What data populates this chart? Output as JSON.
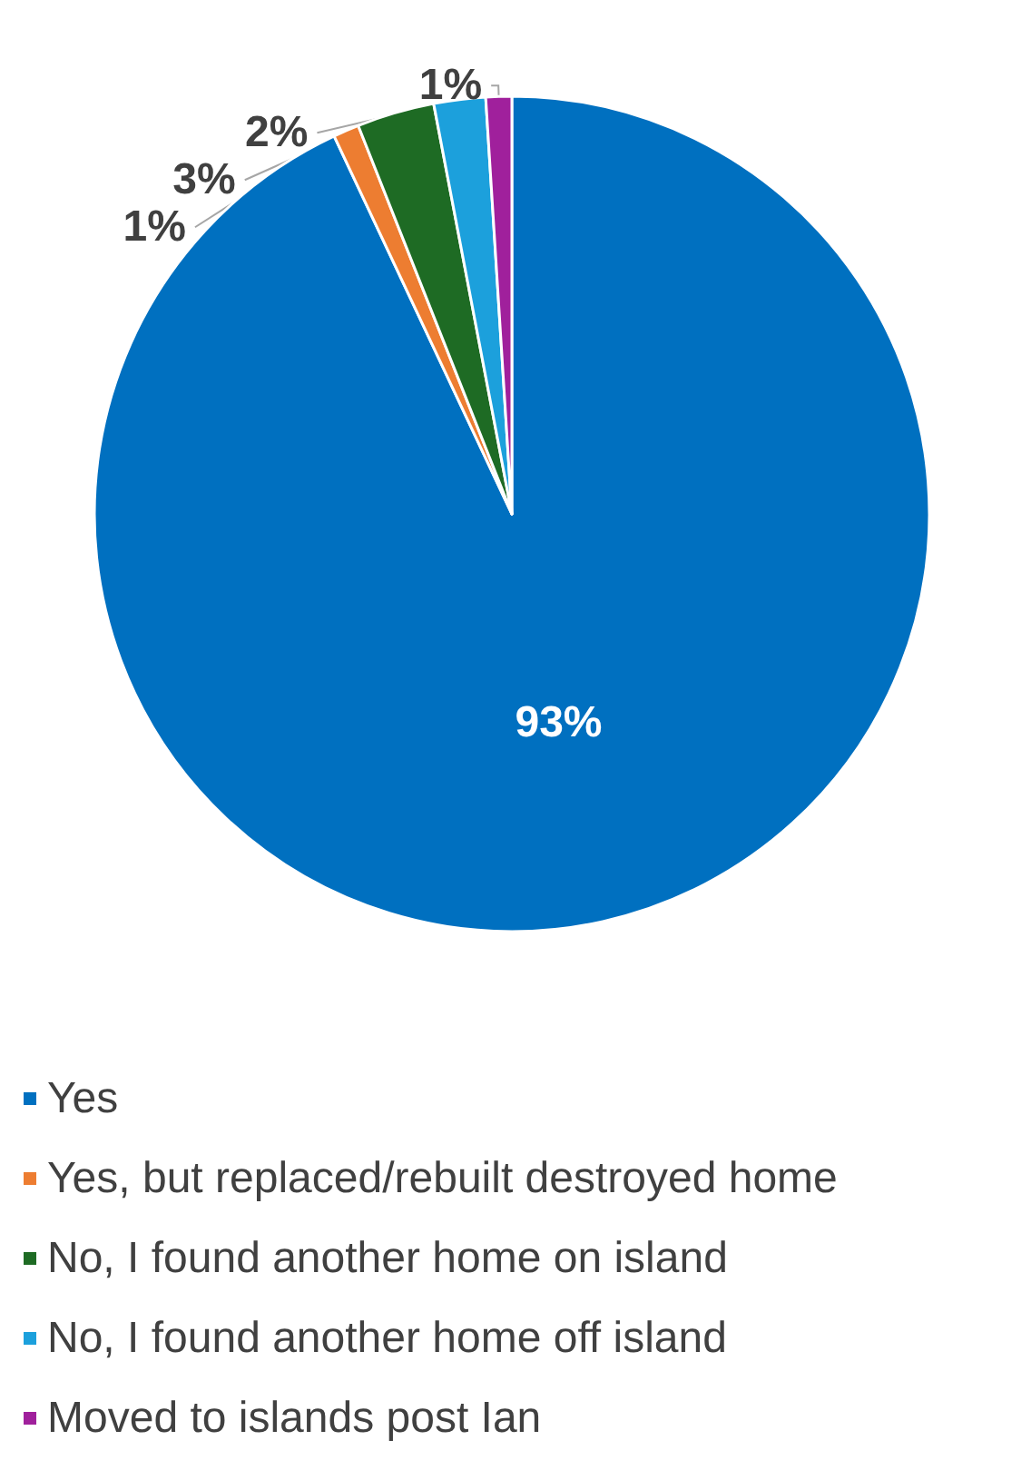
{
  "chart_data": {
    "type": "pie",
    "categories": [
      "Yes",
      "Yes, but replaced/rebuilt destroyed home",
      "No, I found another home on island",
      "No, I found another home off island",
      "Moved to islands post Ian"
    ],
    "values": [
      93,
      1,
      3,
      2,
      1
    ],
    "value_labels": [
      "93%",
      "1%",
      "3%",
      "2%",
      "1%"
    ],
    "colors": [
      "#0070c0",
      "#ed7d31",
      "#1e6b24",
      "#1ca0dc",
      "#a0209c"
    ],
    "legend": "bottom"
  }
}
